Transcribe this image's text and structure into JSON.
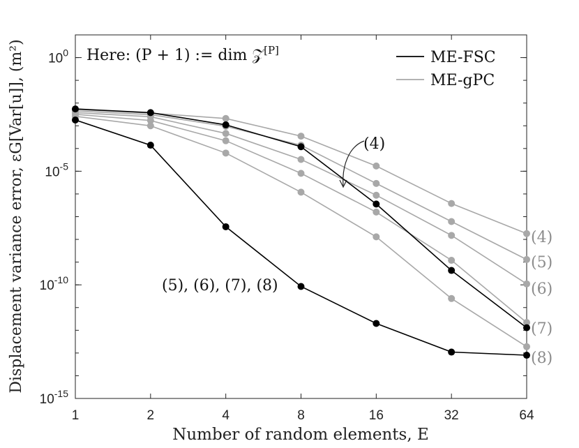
{
  "chart_data": {
    "type": "line",
    "title": "",
    "xlabel": "Number of random elements, E",
    "ylabel": "Displacement variance error, εG[Var[u]], (m²)",
    "x_scale": "log2",
    "y_scale": "log10",
    "xlim": [
      1,
      64
    ],
    "ylim": [
      1e-15,
      10.0
    ],
    "x_ticks": [
      1,
      2,
      4,
      8,
      16,
      32,
      64
    ],
    "x_tick_labels": [
      "1",
      "2",
      "4",
      "8",
      "16",
      "32",
      "64"
    ],
    "y_ticks": [
      1e-15,
      1e-10,
      1e-05,
      1.0
    ],
    "y_tick_labels": [
      {
        "base": "10",
        "exp": "-15"
      },
      {
        "base": "10",
        "exp": "-10"
      },
      {
        "base": "10",
        "exp": "-5"
      },
      {
        "base": "10",
        "exp": "0"
      }
    ],
    "grid": false,
    "legend_position": "top-right",
    "legend": [
      {
        "name": "ME-FSC",
        "color": "#000000"
      },
      {
        "name": "ME-gPC",
        "color": "#a8a8a8"
      }
    ],
    "x": [
      1,
      2,
      4,
      8,
      16,
      32,
      64
    ],
    "series": [
      {
        "name": "ME-FSC",
        "group": "fsc",
        "label": "(4)",
        "color": "#000000",
        "values": [
          0.0055,
          0.0038,
          0.0011,
          0.00012,
          3.6e-07,
          4.3e-10,
          1.3e-12
        ]
      },
      {
        "name": "ME-FSC",
        "group": "fsc",
        "label": "(5),(6),(7),(8)",
        "color": "#000000",
        "values": [
          0.0018,
          0.00014,
          3.6e-08,
          8.5e-11,
          2e-12,
          1.1e-13,
          8e-14
        ]
      },
      {
        "name": "ME-gPC",
        "group": "gpc",
        "label": "(4)",
        "color": "#a8a8a8",
        "values": [
          0.0052,
          0.0036,
          0.0021,
          0.00035,
          1.7e-05,
          3.8e-07,
          1.8e-08
        ]
      },
      {
        "name": "ME-gPC",
        "group": "gpc",
        "label": "(5)",
        "color": "#a8a8a8",
        "values": [
          0.0045,
          0.0031,
          0.00095,
          0.00014,
          2.9e-06,
          6.1e-08,
          1.3e-09
        ]
      },
      {
        "name": "ME-gPC",
        "group": "gpc",
        "label": "(6)",
        "color": "#a8a8a8",
        "values": [
          0.0038,
          0.0025,
          0.00046,
          3.3e-05,
          8.8e-07,
          1.5e-08,
          1.1e-10
        ]
      },
      {
        "name": "ME-gPC",
        "group": "gpc",
        "label": "(7)",
        "color": "#a8a8a8",
        "values": [
          0.0032,
          0.0017,
          0.00022,
          8.1e-06,
          1.6e-07,
          1.2e-09,
          2.2e-12
        ]
      },
      {
        "name": "ME-gPC",
        "group": "gpc",
        "label": "(8)",
        "color": "#a8a8a8",
        "values": [
          0.0026,
          0.001,
          6.3e-05,
          1.2e-06,
          1.3e-08,
          2.5e-11,
          1.9e-13
        ]
      }
    ],
    "annotations": {
      "box_text": "Here: (P + 1) := dim 𝒵",
      "box_sup": "[P]",
      "arrow_label": "(4)",
      "cluster_label": "(5), (6), (7), (8)",
      "right_labels": [
        "(4)",
        "(5)",
        "(6)",
        "(7)",
        "(8)"
      ]
    }
  }
}
